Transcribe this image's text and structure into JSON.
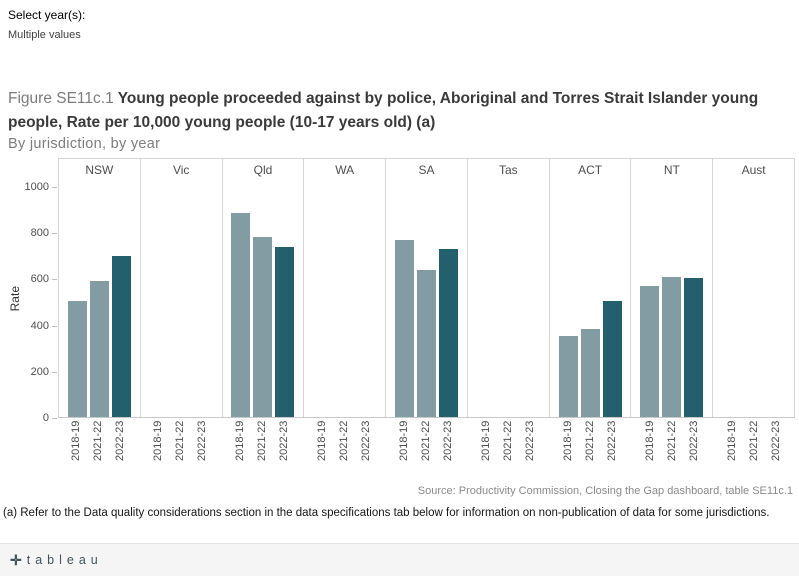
{
  "filter": {
    "label": "Select year(s):",
    "value": "Multiple values"
  },
  "title": {
    "prefix": "Figure SE11c.1",
    "main": "Young people proceeded against by police, Aboriginal and Torres Strait Islander young people, Rate per 10,000 young people (10-17 years old) (a)",
    "subtitle": "By jurisdiction, by year"
  },
  "chart_data": {
    "type": "bar",
    "title": "Figure SE11c.1 Young people proceeded against by police, Aboriginal and Torres Strait Islander young people, Rate per 10,000 young people (10-17 years old) (a)",
    "subtitle": "By jurisdiction, by year",
    "ylabel": "Rate",
    "ylim": [
      0,
      1000
    ],
    "yticks": [
      0,
      200,
      400,
      600,
      800,
      1000
    ],
    "grid": false,
    "legend": "none",
    "categories": [
      "NSW",
      "Vic",
      "Qld",
      "WA",
      "SA",
      "Tas",
      "ACT",
      "NT",
      "Aust"
    ],
    "series": [
      {
        "name": "2018-19",
        "color": "#839ca3",
        "values": [
          500,
          null,
          885,
          null,
          765,
          null,
          350,
          565,
          null
        ]
      },
      {
        "name": "2021-22",
        "color": "#839ca3",
        "values": [
          590,
          null,
          780,
          null,
          635,
          null,
          380,
          605,
          null
        ]
      },
      {
        "name": "2022-23",
        "color": "#235f6c",
        "values": [
          695,
          null,
          735,
          null,
          725,
          null,
          500,
          600,
          null
        ]
      }
    ],
    "colors": {
      "bar_light": "#839ca3",
      "bar_dark": "#235f6c"
    }
  },
  "source": "Source: Productivity Commission, Closing the Gap dashboard, table SE11c.1",
  "footnote": "(a) Refer to the Data quality considerations section in the data specifications tab below for information on non-publication of data for some jurisdictions.",
  "footer": {
    "logo_glyph": "✛",
    "brand": "tableau"
  }
}
